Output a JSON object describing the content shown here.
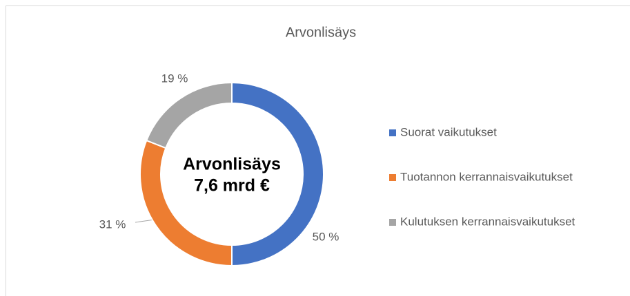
{
  "chart_data": {
    "type": "donut",
    "title": "Arvonlisäys",
    "annotations": [
      "Arvonlisäys",
      "7,6 mrd €"
    ],
    "categories": [
      "Suorat vaikutukset",
      "Tuotannon kerrannaisvaikutukset",
      "Kulutuksen kerrannaisvaikutukset"
    ],
    "values": [
      50,
      31,
      19
    ],
    "value_labels": [
      "50 %",
      "31 %",
      "19 %"
    ],
    "colors": [
      "#4472c4",
      "#ed7d31",
      "#a5a5a5"
    ],
    "legend": "right"
  }
}
